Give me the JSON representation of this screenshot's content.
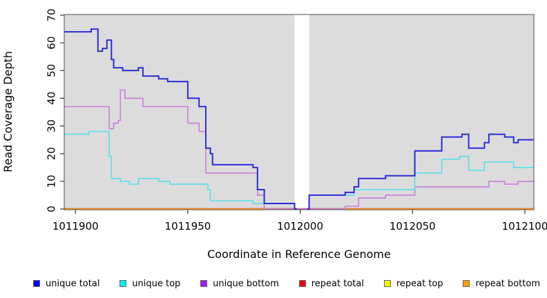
{
  "chart_data": {
    "type": "line",
    "subtype": "step",
    "title": "",
    "xlabel": "Coordinate in Reference Genome",
    "ylabel": "Read Coverage Depth",
    "xlim": [
      1011895,
      1012104
    ],
    "ylim": [
      0,
      70
    ],
    "x_ticks": [
      1011900,
      1011950,
      1012000,
      1012050,
      1012100
    ],
    "y_ticks": [
      0,
      10,
      20,
      30,
      40,
      50,
      60,
      70
    ],
    "grid": "off",
    "legend_position": "bottom",
    "panel_bg": "#dcdcdc",
    "masked_region": {
      "x0": 1011997.5,
      "x1": 1012004,
      "color": "#ffffff"
    },
    "series": [
      {
        "name": "repeat top",
        "color": "#f0f000",
        "width": 1.5,
        "points": [
          [
            1011895,
            0
          ]
        ]
      },
      {
        "name": "repeat total",
        "color": "#cc3a50",
        "width": 2.4,
        "points": [
          [
            1011895,
            0
          ]
        ]
      },
      {
        "name": "repeat bottom",
        "color": "#ffa500",
        "width": 1.5,
        "points": [
          [
            1011895,
            0
          ],
          [
            1011997.5,
            null
          ],
          [
            1012004,
            0
          ]
        ]
      },
      {
        "name": "unique bottom",
        "color": "#c77fdb",
        "width": 1.6,
        "points": [
          [
            1011895,
            37
          ],
          [
            1011915,
            29
          ],
          [
            1011917,
            31
          ],
          [
            1011919,
            32
          ],
          [
            1011920,
            43
          ],
          [
            1011922,
            40
          ],
          [
            1011930,
            37
          ],
          [
            1011950,
            31
          ],
          [
            1011955,
            28
          ],
          [
            1011958,
            13
          ],
          [
            1011981,
            5
          ],
          [
            1011984,
            0
          ],
          [
            1012020,
            1
          ],
          [
            1012026,
            4
          ],
          [
            1012038,
            5
          ],
          [
            1012051,
            8
          ],
          [
            1012084,
            10
          ],
          [
            1012091,
            9
          ],
          [
            1012097,
            10
          ]
        ]
      },
      {
        "name": "unique top",
        "color": "#5adfe6",
        "width": 1.6,
        "points": [
          [
            1011895,
            27
          ],
          [
            1011906,
            28
          ],
          [
            1011915,
            19
          ],
          [
            1011916,
            11
          ],
          [
            1011920,
            10
          ],
          [
            1011924,
            9
          ],
          [
            1011928,
            11
          ],
          [
            1011937,
            10
          ],
          [
            1011942,
            9
          ],
          [
            1011959,
            7
          ],
          [
            1011960,
            3
          ],
          [
            1011979,
            2
          ],
          [
            1011997.5,
            null
          ],
          [
            1012004,
            5
          ],
          [
            1012024,
            7
          ],
          [
            1012051,
            13
          ],
          [
            1012063,
            18
          ],
          [
            1012071,
            19
          ],
          [
            1012075,
            14
          ],
          [
            1012082,
            17
          ],
          [
            1012095,
            15
          ]
        ]
      },
      {
        "name": "unique total",
        "color": "#2b2bd5",
        "width": 2,
        "points": [
          [
            1011895,
            64
          ],
          [
            1011907,
            65
          ],
          [
            1011910,
            57
          ],
          [
            1011912,
            58
          ],
          [
            1011914,
            61
          ],
          [
            1011916,
            54
          ],
          [
            1011917,
            51
          ],
          [
            1011921,
            50
          ],
          [
            1011928,
            51
          ],
          [
            1011930,
            48
          ],
          [
            1011937,
            47
          ],
          [
            1011941,
            46
          ],
          [
            1011950,
            40
          ],
          [
            1011955,
            37
          ],
          [
            1011958,
            22
          ],
          [
            1011960,
            20
          ],
          [
            1011961,
            16
          ],
          [
            1011979,
            15
          ],
          [
            1011981,
            7
          ],
          [
            1011984,
            2
          ],
          [
            1011997.5,
            0
          ],
          [
            1011998.5,
            null
          ],
          [
            1012003.2,
            0
          ],
          [
            1012004,
            5
          ],
          [
            1012020,
            6
          ],
          [
            1012024,
            8
          ],
          [
            1012026,
            11
          ],
          [
            1012038,
            12
          ],
          [
            1012051,
            21
          ],
          [
            1012063,
            26
          ],
          [
            1012072,
            27
          ],
          [
            1012075,
            22
          ],
          [
            1012082,
            24
          ],
          [
            1012084,
            27
          ],
          [
            1012091,
            26
          ],
          [
            1012095,
            24
          ],
          [
            1012097,
            25
          ]
        ]
      }
    ],
    "legend": [
      {
        "label": "unique total",
        "color": "#0000ee"
      },
      {
        "label": "unique top",
        "color": "#00eeee"
      },
      {
        "label": "unique bottom",
        "color": "#a020f0"
      },
      {
        "label": "repeat total",
        "color": "#ee0000"
      },
      {
        "label": "repeat top",
        "color": "#f5f500"
      },
      {
        "label": "repeat bottom",
        "color": "#ff9d00"
      }
    ]
  }
}
